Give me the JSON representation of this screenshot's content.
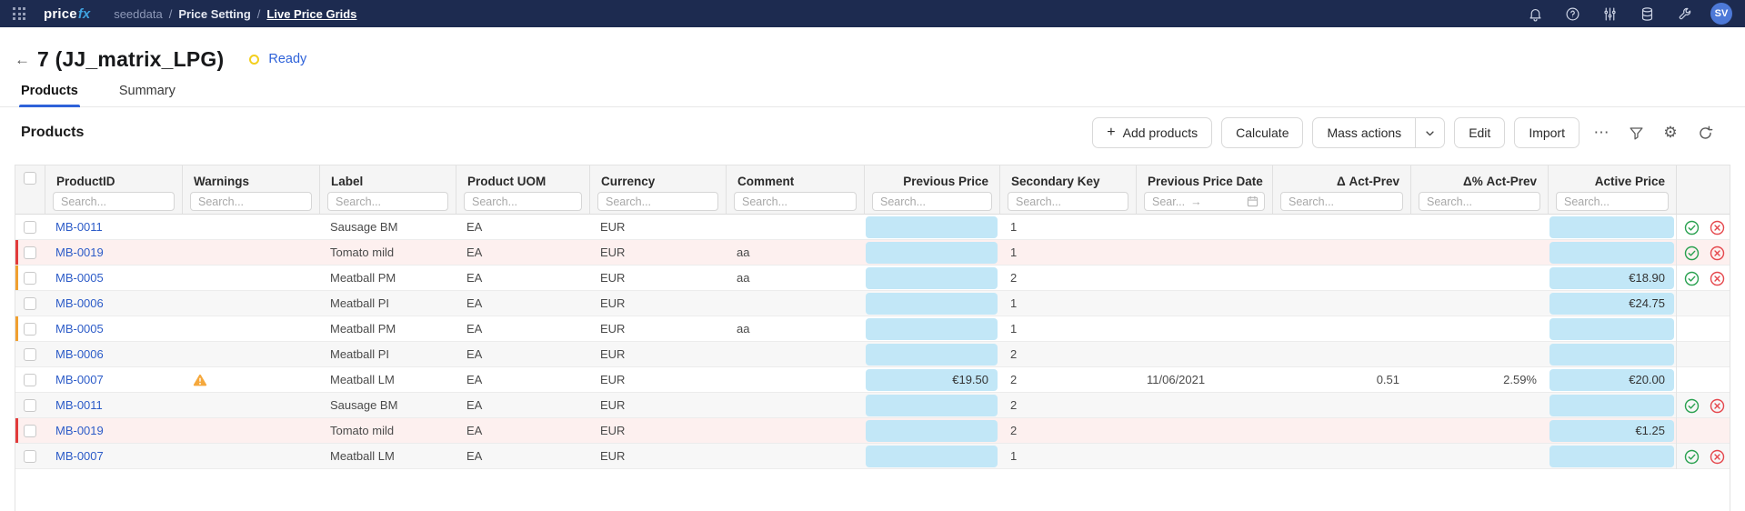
{
  "navbar": {
    "logo": {
      "part1": "price",
      "part2": "fx"
    },
    "breadcrumb": {
      "app": "seeddata",
      "separator": "/",
      "section": "Price Setting",
      "page": "Live Price Grids"
    },
    "avatar_initials": "SV"
  },
  "page_header": {
    "back_icon": "←",
    "title": "7 (JJ_matrix_LPG)",
    "status": "Ready"
  },
  "tabs": [
    {
      "label": "Products",
      "active": true
    },
    {
      "label": "Summary",
      "active": false
    }
  ],
  "toolbar": {
    "heading": "Products",
    "add_label": "Add products",
    "calculate_label": "Calculate",
    "mass_actions_label": "Mass actions",
    "edit_label": "Edit",
    "import_label": "Import",
    "more_label": "⋯"
  },
  "table": {
    "columns": [
      {
        "label": "ProductID",
        "align": "left"
      },
      {
        "label": "Warnings",
        "align": "left"
      },
      {
        "label": "Label",
        "align": "left"
      },
      {
        "label": "Product UOM",
        "align": "left"
      },
      {
        "label": "Currency",
        "align": "left"
      },
      {
        "label": "Comment",
        "align": "left"
      },
      {
        "label": "Previous Price",
        "align": "right"
      },
      {
        "label": "Secondary Key",
        "align": "left"
      },
      {
        "label": "Previous Price Date",
        "align": "left"
      },
      {
        "label": "Δ Act-Prev",
        "align": "right"
      },
      {
        "label": "Δ% Act-Prev",
        "align": "right"
      },
      {
        "label": "Active Price",
        "align": "right"
      }
    ],
    "search_placeholder": "Search...",
    "date_search_placeholder": "Sear...",
    "date_range_arrow": "→",
    "rows": [
      {
        "product_id": "MB-0011",
        "warning": false,
        "label": "Sausage BM",
        "uom": "EA",
        "currency": "EUR",
        "comment": "",
        "previous_price": "",
        "secondary_key": "1",
        "previous_price_date": "",
        "delta_act_prev": "",
        "delta_pct_act_prev": "",
        "active_price": "",
        "approvable": true,
        "row_color": "white",
        "stripe": ""
      },
      {
        "product_id": "MB-0019",
        "warning": false,
        "label": "Tomato mild",
        "uom": "EA",
        "currency": "EUR",
        "comment": "aa",
        "previous_price": "",
        "secondary_key": "1",
        "previous_price_date": "",
        "delta_act_prev": "",
        "delta_pct_act_prev": "",
        "active_price": "",
        "approvable": true,
        "row_color": "pink",
        "stripe": "red"
      },
      {
        "product_id": "MB-0005",
        "warning": false,
        "label": "Meatball PM",
        "uom": "EA",
        "currency": "EUR",
        "comment": "aa",
        "previous_price": "",
        "secondary_key": "2",
        "previous_price_date": "",
        "delta_act_prev": "",
        "delta_pct_act_prev": "",
        "active_price": "€18.90",
        "approvable": true,
        "row_color": "white",
        "stripe": "orange"
      },
      {
        "product_id": "MB-0006",
        "warning": false,
        "label": "Meatball PI",
        "uom": "EA",
        "currency": "EUR",
        "comment": "",
        "previous_price": "",
        "secondary_key": "1",
        "previous_price_date": "",
        "delta_act_prev": "",
        "delta_pct_act_prev": "",
        "active_price": "€24.75",
        "approvable": false,
        "row_color": "gray",
        "stripe": ""
      },
      {
        "product_id": "MB-0005",
        "warning": false,
        "label": "Meatball PM",
        "uom": "EA",
        "currency": "EUR",
        "comment": "aa",
        "previous_price": "",
        "secondary_key": "1",
        "previous_price_date": "",
        "delta_act_prev": "",
        "delta_pct_act_prev": "",
        "active_price": "",
        "approvable": false,
        "row_color": "white",
        "stripe": "orange"
      },
      {
        "product_id": "MB-0006",
        "warning": false,
        "label": "Meatball PI",
        "uom": "EA",
        "currency": "EUR",
        "comment": "",
        "previous_price": "",
        "secondary_key": "2",
        "previous_price_date": "",
        "delta_act_prev": "",
        "delta_pct_act_prev": "",
        "active_price": "",
        "approvable": false,
        "row_color": "gray",
        "stripe": ""
      },
      {
        "product_id": "MB-0007",
        "warning": true,
        "label": "Meatball LM",
        "uom": "EA",
        "currency": "EUR",
        "comment": "",
        "previous_price": "€19.50",
        "secondary_key": "2",
        "previous_price_date": "11/06/2021",
        "delta_act_prev": "0.51",
        "delta_pct_act_prev": "2.59%",
        "active_price": "€20.00",
        "approvable": false,
        "row_color": "white",
        "stripe": ""
      },
      {
        "product_id": "MB-0011",
        "warning": false,
        "label": "Sausage BM",
        "uom": "EA",
        "currency": "EUR",
        "comment": "",
        "previous_price": "",
        "secondary_key": "2",
        "previous_price_date": "",
        "delta_act_prev": "",
        "delta_pct_act_prev": "",
        "active_price": "",
        "approvable": true,
        "row_color": "gray",
        "stripe": ""
      },
      {
        "product_id": "MB-0019",
        "warning": false,
        "label": "Tomato mild",
        "uom": "EA",
        "currency": "EUR",
        "comment": "",
        "previous_price": "",
        "secondary_key": "2",
        "previous_price_date": "",
        "delta_act_prev": "",
        "delta_pct_act_prev": "",
        "active_price": "€1.25",
        "approvable": false,
        "row_color": "pink",
        "stripe": "red"
      },
      {
        "product_id": "MB-0007",
        "warning": false,
        "label": "Meatball LM",
        "uom": "EA",
        "currency": "EUR",
        "comment": "",
        "previous_price": "",
        "secondary_key": "1",
        "previous_price_date": "",
        "delta_act_prev": "",
        "delta_pct_act_prev": "",
        "active_price": "",
        "approvable": true,
        "row_color": "gray",
        "stripe": ""
      }
    ]
  },
  "colors": {
    "navbar": "#1d2b50",
    "accent": "#2e62d9",
    "link": "#2d5cc8",
    "cell_blue": "#c2e7f7",
    "row_pink": "#fdf0ef",
    "row_gray": "#f7f7f7",
    "stripe_red": "#e23b3b",
    "stripe_orange": "#f0a030",
    "approve_green": "#2aa150",
    "reject_red": "#e5484d",
    "warning_orange": "#f5a83c",
    "status_yellow": "#f3cf1f"
  }
}
